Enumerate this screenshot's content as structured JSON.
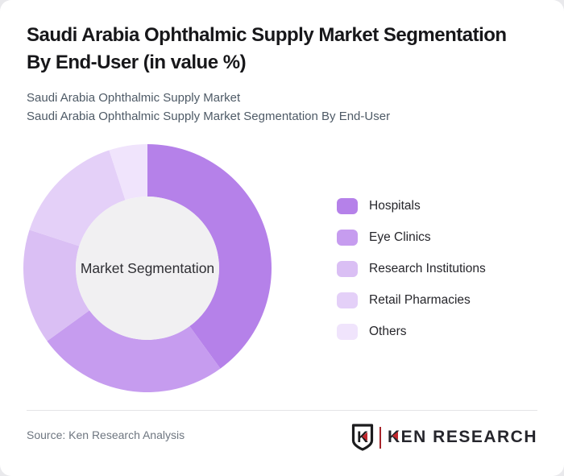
{
  "page": {
    "background_color": "#e9e9ec",
    "card_background_color": "#ffffff"
  },
  "header": {
    "title_lines": [
      "Saudi Arabia Ophthalmic Supply Market Segmentation",
      "By End-User (in value %)"
    ],
    "subtitle_lines": [
      "Saudi Arabia Ophthalmic Supply Market",
      "Saudi Arabia Ophthalmic Supply Market Segmentation By End-User"
    ]
  },
  "chart_data": {
    "type": "pie",
    "variant": "donut",
    "title": "Saudi Arabia Ophthalmic Supply Market Segmentation By End-User (in value %)",
    "center_label": "Market Segmentation",
    "categories": [
      "Hospitals",
      "Eye Clinics",
      "Research Institutions",
      "Retail Pharmacies",
      "Others"
    ],
    "values": [
      40,
      25,
      15,
      15,
      5
    ],
    "unit": "%",
    "values_estimated_from_arc_angles": true,
    "colors": [
      "#b581e9",
      "#c69cef",
      "#dabff4",
      "#e4d0f8",
      "#f0e4fc"
    ],
    "hole_color": "#f1f0f2",
    "start_angle_deg": 0,
    "inner_radius_ratio": 0.578,
    "legend_position": "right",
    "data_labels_shown": false
  },
  "footer": {
    "source_label": "Source: Ken Research Analysis",
    "logo": {
      "shield_letter": "K",
      "brand_text": "KEN RESEARCH",
      "accent_color": "#c1272d",
      "text_color": "#26262c"
    }
  }
}
